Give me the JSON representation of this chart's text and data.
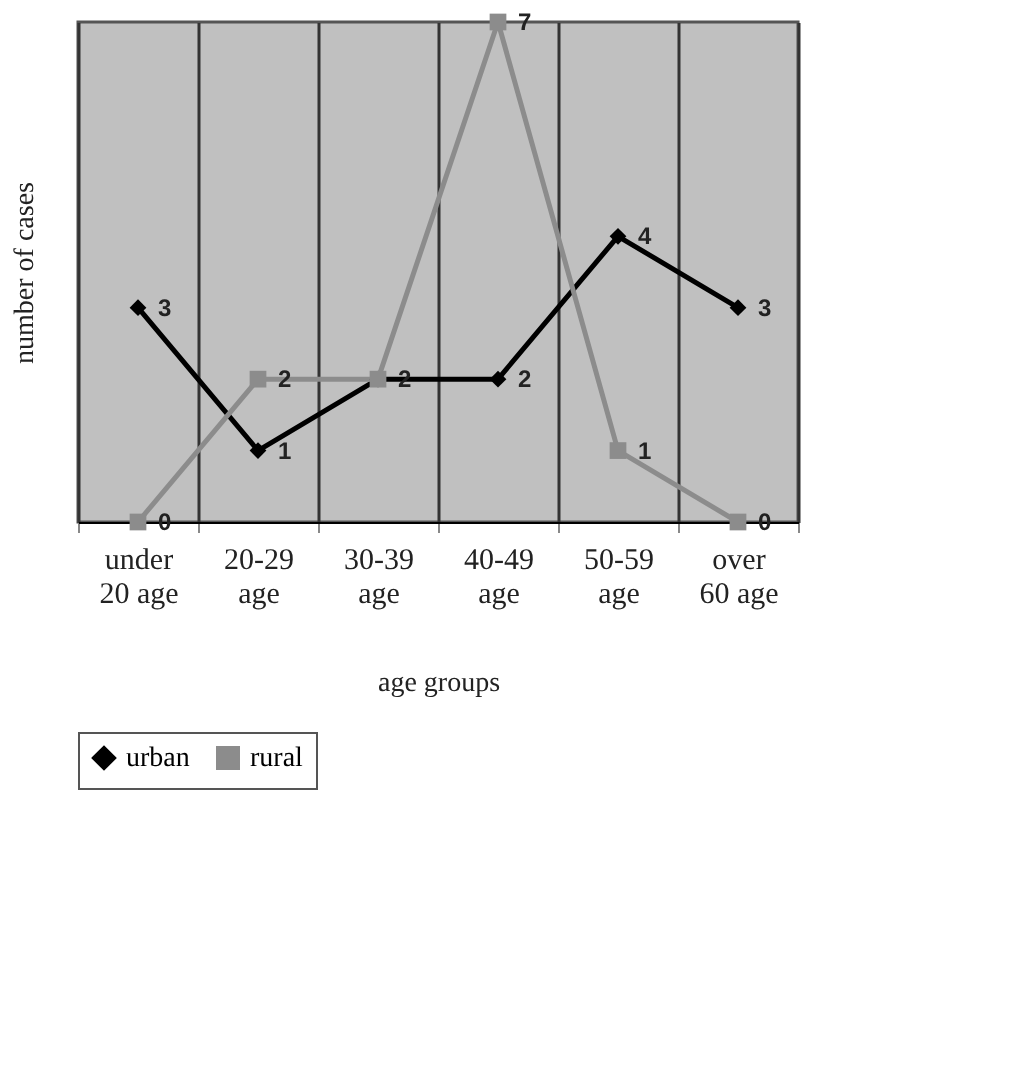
{
  "chart_data": {
    "type": "line",
    "xlabel": "age groups",
    "ylabel": "number of cases",
    "categories": [
      "under 20 age",
      "20-29 age",
      "30-39 age",
      "40-49 age",
      "50-59 age",
      "over 60 age"
    ],
    "series": [
      {
        "name": "urban",
        "color": "#000000",
        "marker": "diamond",
        "values": [
          3,
          1,
          2,
          2,
          4,
          3
        ],
        "value_labels": [
          "3",
          "1",
          null,
          "2",
          "4",
          "3"
        ]
      },
      {
        "name": "rural",
        "color": "#8c8c8c",
        "marker": "square",
        "values": [
          0,
          2,
          2,
          7,
          1,
          0
        ]
      }
    ],
    "data_labels": true,
    "grid": "x",
    "legend": "bottom",
    "tick_labels": "x",
    "line_style": "solid"
  }
}
